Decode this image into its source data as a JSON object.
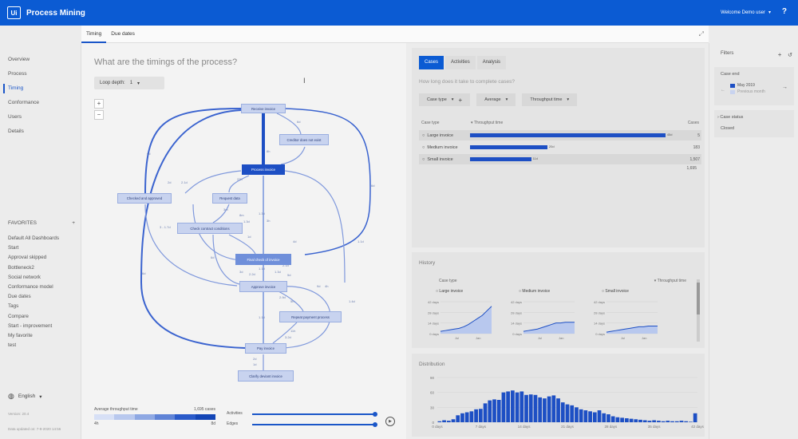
{
  "app": {
    "title": "Process Mining",
    "logo_text": "Ui",
    "welcome": "Welcome Demo user",
    "help": "?"
  },
  "tabs": [
    {
      "label": "Timing"
    },
    {
      "label": "Due dates"
    }
  ],
  "sidebar": {
    "nav": [
      {
        "label": "Overview"
      },
      {
        "label": "Process"
      },
      {
        "label": "Timing"
      },
      {
        "label": "Conformance"
      },
      {
        "label": "Users"
      },
      {
        "label": "Details"
      }
    ],
    "favorites_title": "FAVORITES",
    "favorites": [
      "Default All Dashboards",
      "Start",
      "Approval skipped",
      "Bottleneck2",
      "Social network",
      "Conformance model",
      "Due dates",
      "Tags",
      "Compare",
      "Start - improvement",
      "My favorite",
      "test"
    ],
    "language": "English",
    "version": "Version: 20.4",
    "updated": "Data updated on: 7-9-2020 14:56"
  },
  "process": {
    "question": "What are the timings of the process?",
    "loop_depth_label": "Loop depth:",
    "loop_depth_value": "1",
    "nodes": [
      {
        "label": "Receive invoice"
      },
      {
        "label": "Creditor does not exist"
      },
      {
        "label": "Process invoice"
      },
      {
        "label": "Checked and approved"
      },
      {
        "label": "Request data"
      },
      {
        "label": "Check contract conditions"
      },
      {
        "label": "Final check of invoice"
      },
      {
        "label": "Approve invoice"
      },
      {
        "label": "Repeat payment process"
      },
      {
        "label": "Pay invoice"
      },
      {
        "label": "Clarify deviant invoice"
      }
    ],
    "edge_labels": [
      "6d",
      "6d",
      "6d",
      "6d",
      "8h",
      "2d",
      "2.1d",
      "22h",
      "1.3d",
      "3m",
      "8m",
      "1.3d",
      "3h",
      "3 - 1.7d",
      "2.2d",
      "1.1d",
      "1.1d",
      "1d",
      "6d",
      "4d",
      "5d",
      "1.3d",
      "2.1d",
      "9d",
      "4h",
      "5h",
      "2.9d",
      "1.4d",
      "1.1d",
      "11h",
      "3.2d",
      "2d",
      "1d",
      "3d"
    ],
    "legend": {
      "title": "Average throughput time",
      "cases": "1,695 cases",
      "min": "4h",
      "max": "8d"
    },
    "activities_label": "Activities",
    "edges_label": "Edges"
  },
  "cases": {
    "tabs": [
      {
        "label": "Cases"
      },
      {
        "label": "Activities"
      },
      {
        "label": "Analysis"
      }
    ],
    "question": "How long does it take to complete cases?",
    "filters": [
      {
        "label": "Case type"
      },
      {
        "label": "Average"
      },
      {
        "label": "Throughput time"
      }
    ],
    "headers": {
      "case_type": "Case type",
      "throughput": "Throughput time",
      "cases": "Cases"
    },
    "rows": [
      {
        "label": "Large invoice",
        "fraction": 0.96,
        "value": "45d",
        "cases": "5"
      },
      {
        "label": "Medium invoice",
        "fraction": 0.38,
        "value": "20d",
        "cases": "183"
      },
      {
        "label": "Small invoice",
        "fraction": 0.3,
        "value": "11d",
        "cases": "1,507"
      }
    ],
    "total": "1,695"
  },
  "history": {
    "title": "History",
    "col1": "Case type",
    "col2": "Throughput time",
    "charts": [
      {
        "name": "Large invoice",
        "values": [
          3,
          4,
          5,
          6,
          7,
          9,
          12,
          16,
          20,
          24,
          30,
          36
        ]
      },
      {
        "name": "Medium invoice",
        "values": [
          3,
          4,
          5,
          6,
          8,
          10,
          12,
          14,
          14,
          15,
          15,
          15
        ]
      },
      {
        "name": "Small invoice",
        "values": [
          2,
          3,
          4,
          5,
          6,
          7,
          8,
          9,
          9,
          10,
          10,
          10
        ]
      }
    ],
    "yticks": [
      "42 days",
      "28 days",
      "14 days",
      "0 days"
    ],
    "xticks": [
      "Jul",
      "Jan"
    ]
  },
  "distribution": {
    "title": "Distribution",
    "yticks": [
      "90",
      "60",
      "30",
      "0"
    ],
    "xticks": [
      "0 days",
      "7 days",
      "14 days",
      "21 days",
      "28 days",
      "35 days",
      "42 days"
    ],
    "values": [
      2,
      4,
      3,
      6,
      14,
      18,
      20,
      22,
      26,
      27,
      38,
      44,
      46,
      45,
      60,
      62,
      64,
      60,
      62,
      55,
      56,
      55,
      50,
      48,
      52,
      54,
      48,
      40,
      36,
      34,
      30,
      26,
      24,
      22,
      20,
      24,
      18,
      16,
      12,
      10,
      9,
      8,
      7,
      6,
      5,
      4,
      3,
      4,
      3,
      2,
      3,
      2,
      2,
      3,
      2,
      1,
      18
    ]
  },
  "filter_panel": {
    "title": "Filters",
    "case_end": "Case end",
    "period": "May 2019",
    "previous": "Previous month",
    "case_status": "Case status",
    "closed": "Closed"
  },
  "colors": {
    "brand": "#0b5bd3",
    "accent": "#1d4fc4",
    "node_light": "#c8d3ef"
  }
}
